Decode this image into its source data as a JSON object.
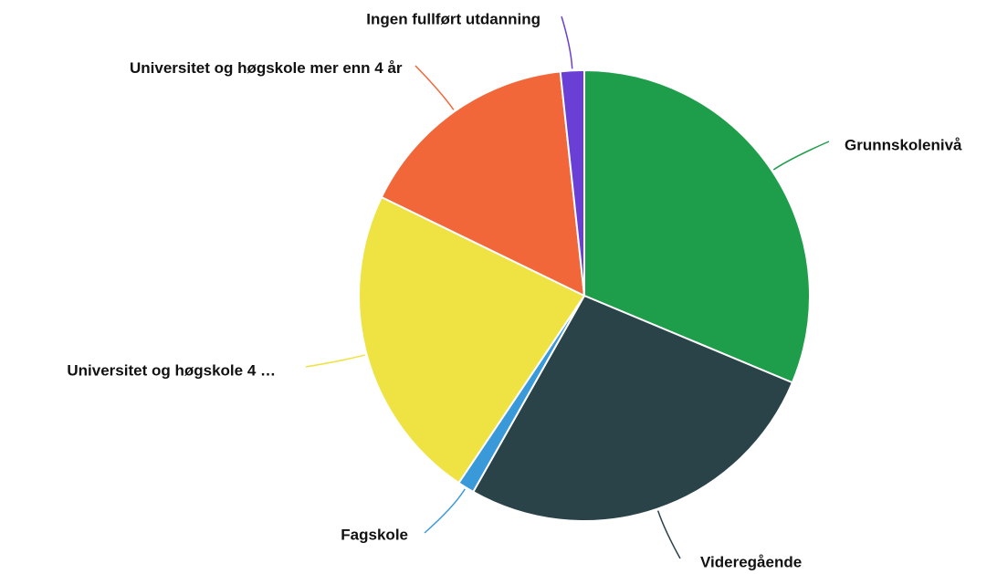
{
  "chart_data": {
    "type": "pie",
    "categories": [
      "Grunnskolenivå",
      "Videregående",
      "Fagskole",
      "Universitet og høgskole 4 …",
      "Universitet og høgskole mer enn 4 år",
      "Ingen fullført utdanning"
    ],
    "values": [
      31.3,
      26.9,
      1.2,
      22.8,
      16.1,
      1.7
    ],
    "colors": [
      "#1e9e4a",
      "#2a4348",
      "#3a9ad9",
      "#efe243",
      "#f2673a",
      "#6a3fd6"
    ]
  }
}
